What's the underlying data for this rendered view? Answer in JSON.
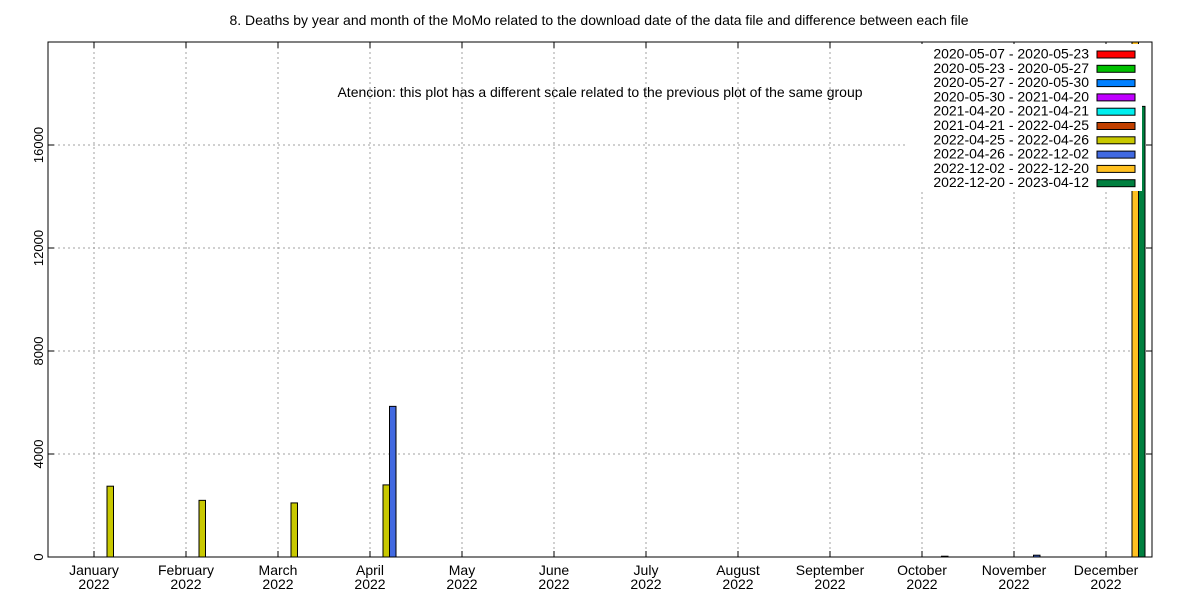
{
  "chart_data": {
    "type": "bar",
    "title": "8. Deaths by year and month of the MoMo related to the download date of the data file and difference between each file",
    "annotation": "Atencion: this plot has a different scale related to the previous plot of the same group",
    "annotation_color": "#ff0000",
    "xlabel": "",
    "ylabel": "",
    "ylim": [
      0,
      20000
    ],
    "yticks": [
      0,
      4000,
      8000,
      12000,
      16000
    ],
    "grid": true,
    "legend_position": "top-right",
    "categories": [
      {
        "month": "January",
        "year": "2022"
      },
      {
        "month": "February",
        "year": "2022"
      },
      {
        "month": "March",
        "year": "2022"
      },
      {
        "month": "April",
        "year": "2022"
      },
      {
        "month": "May",
        "year": "2022"
      },
      {
        "month": "June",
        "year": "2022"
      },
      {
        "month": "July",
        "year": "2022"
      },
      {
        "month": "August",
        "year": "2022"
      },
      {
        "month": "September",
        "year": "2022"
      },
      {
        "month": "October",
        "year": "2022"
      },
      {
        "month": "November",
        "year": "2022"
      },
      {
        "month": "December",
        "year": "2022"
      }
    ],
    "series": [
      {
        "name": "2020-05-07 - 2020-05-23",
        "color": "#ff0000",
        "values": [
          0,
          0,
          0,
          0,
          0,
          0,
          0,
          0,
          0,
          0,
          0,
          0
        ]
      },
      {
        "name": "2020-05-23 - 2020-05-27",
        "color": "#00c000",
        "values": [
          0,
          0,
          0,
          0,
          0,
          0,
          0,
          0,
          0,
          0,
          0,
          0
        ]
      },
      {
        "name": "2020-05-27 - 2020-05-30",
        "color": "#0080ff",
        "values": [
          0,
          0,
          0,
          0,
          0,
          0,
          0,
          0,
          0,
          0,
          0,
          0
        ]
      },
      {
        "name": "2020-05-30 - 2021-04-20",
        "color": "#c000ff",
        "values": [
          0,
          0,
          0,
          0,
          0,
          0,
          0,
          0,
          0,
          0,
          0,
          0
        ]
      },
      {
        "name": "2021-04-20 - 2021-04-21",
        "color": "#00eeee",
        "values": [
          0,
          0,
          0,
          0,
          0,
          0,
          0,
          0,
          0,
          0,
          0,
          0
        ]
      },
      {
        "name": "2021-04-21 - 2022-04-25",
        "color": "#c04000",
        "values": [
          0,
          0,
          0,
          0,
          0,
          0,
          0,
          0,
          0,
          0,
          0,
          0
        ]
      },
      {
        "name": "2022-04-25 - 2022-04-26",
        "color": "#c8c800",
        "values": [
          2750,
          2200,
          2100,
          2800,
          0,
          0,
          0,
          0,
          0,
          0,
          0,
          0
        ]
      },
      {
        "name": "2022-04-26 - 2022-12-02",
        "color": "#4169e1",
        "values": [
          0,
          0,
          0,
          5850,
          0,
          0,
          0,
          0,
          0,
          30,
          70,
          0
        ]
      },
      {
        "name": "2022-12-02 - 2022-12-20",
        "color": "#ffc020",
        "values": [
          0,
          0,
          0,
          0,
          0,
          0,
          0,
          0,
          0,
          0,
          0,
          20000
        ]
      },
      {
        "name": "2022-12-20 - 2023-04-12",
        "color": "#008040",
        "values": [
          0,
          0,
          0,
          0,
          0,
          0,
          0,
          0,
          0,
          0,
          0,
          17500
        ]
      }
    ]
  }
}
